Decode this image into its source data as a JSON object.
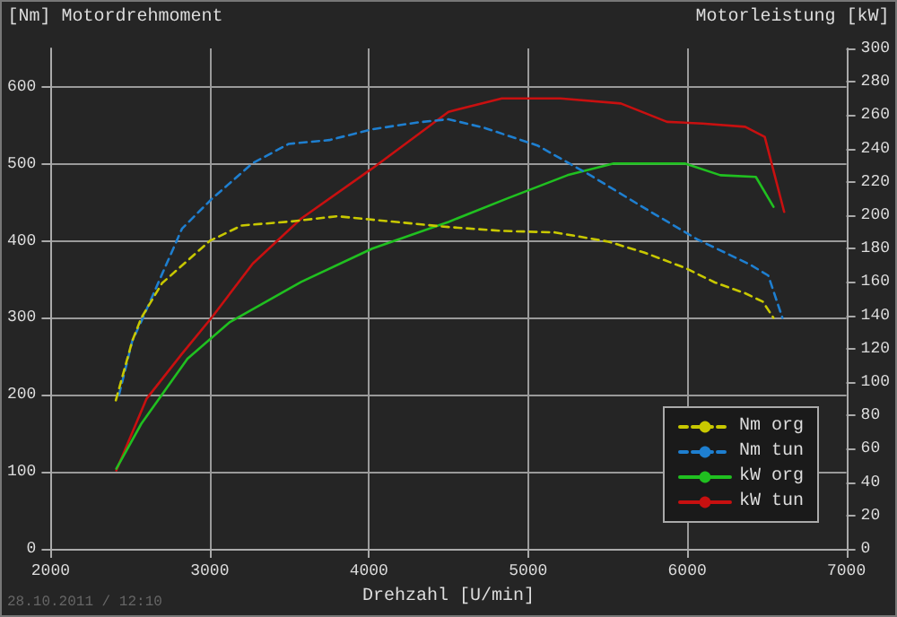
{
  "chart_data": {
    "type": "line",
    "xlabel": "Drehzahl [U/min]",
    "ylabel": "[Nm] Motordrehmoment",
    "y2label": "Motorleistung [kW]",
    "annotations": [
      "28.10.2011 / 12:10"
    ],
    "xlim": [
      2000,
      7000
    ],
    "xticks": [
      2000,
      3000,
      4000,
      5000,
      6000,
      7000
    ],
    "ylim": [
      0,
      650
    ],
    "yticks": [
      0,
      100,
      200,
      300,
      400,
      500,
      600
    ],
    "y2lim": [
      0,
      300
    ],
    "y2ticks": [
      0,
      20,
      40,
      60,
      80,
      100,
      120,
      140,
      160,
      180,
      200,
      220,
      240,
      260,
      280,
      300
    ],
    "grid": true,
    "legend": "bottom right",
    "marker": "none",
    "series": [
      {
        "name": "Nm org",
        "color": "#c8c800",
        "line_style": "dashed",
        "x": [
          2410,
          2513,
          2570,
          2700,
          3000,
          3200,
          3500,
          3800,
          4000,
          4500,
          4835,
          5170,
          5505,
          5728,
          5985,
          6174,
          6364,
          6475,
          6542
        ],
        "values": [
          193,
          270,
          300,
          345,
          400,
          420,
          425,
          432,
          428,
          418,
          413,
          411,
          399,
          385,
          365,
          346,
          332,
          321,
          300
        ]
      },
      {
        "name": "Nm tun",
        "color": "#1e7fd0",
        "line_style": "dashed",
        "x": [
          2430,
          2513,
          2580,
          2826,
          3015,
          3270,
          3496,
          3752,
          4020,
          4310,
          4500,
          4723,
          5058,
          5393,
          5728,
          6063,
          6397,
          6509,
          6598
        ],
        "values": [
          200,
          270,
          300,
          416,
          455,
          501,
          526,
          531,
          545,
          554,
          558,
          547,
          524,
          485,
          443,
          402,
          369,
          355,
          300
        ]
      },
      {
        "name": "kW org",
        "color": "#20c020",
        "line_style": "solid",
        "axis": "y2",
        "x": [
          2413,
          2570,
          2860,
          3127,
          3574,
          4020,
          4500,
          4868,
          5248,
          5538,
          5985,
          6208,
          6431,
          6542
        ],
        "values": [
          48,
          75,
          114,
          136,
          160,
          180,
          196,
          210,
          224,
          231,
          231,
          224,
          223,
          205
        ]
      },
      {
        "name": "kW tun",
        "color": "#c81010",
        "line_style": "solid",
        "axis": "y2",
        "x": [
          2413,
          2603,
          2826,
          3015,
          3270,
          3574,
          4020,
          4500,
          4835,
          5203,
          5583,
          5873,
          6096,
          6364,
          6487,
          6609
        ],
        "values": [
          47,
          90,
          117,
          139,
          171,
          198,
          228,
          262,
          270,
          270,
          267,
          256,
          255,
          253,
          247,
          202
        ]
      }
    ]
  }
}
